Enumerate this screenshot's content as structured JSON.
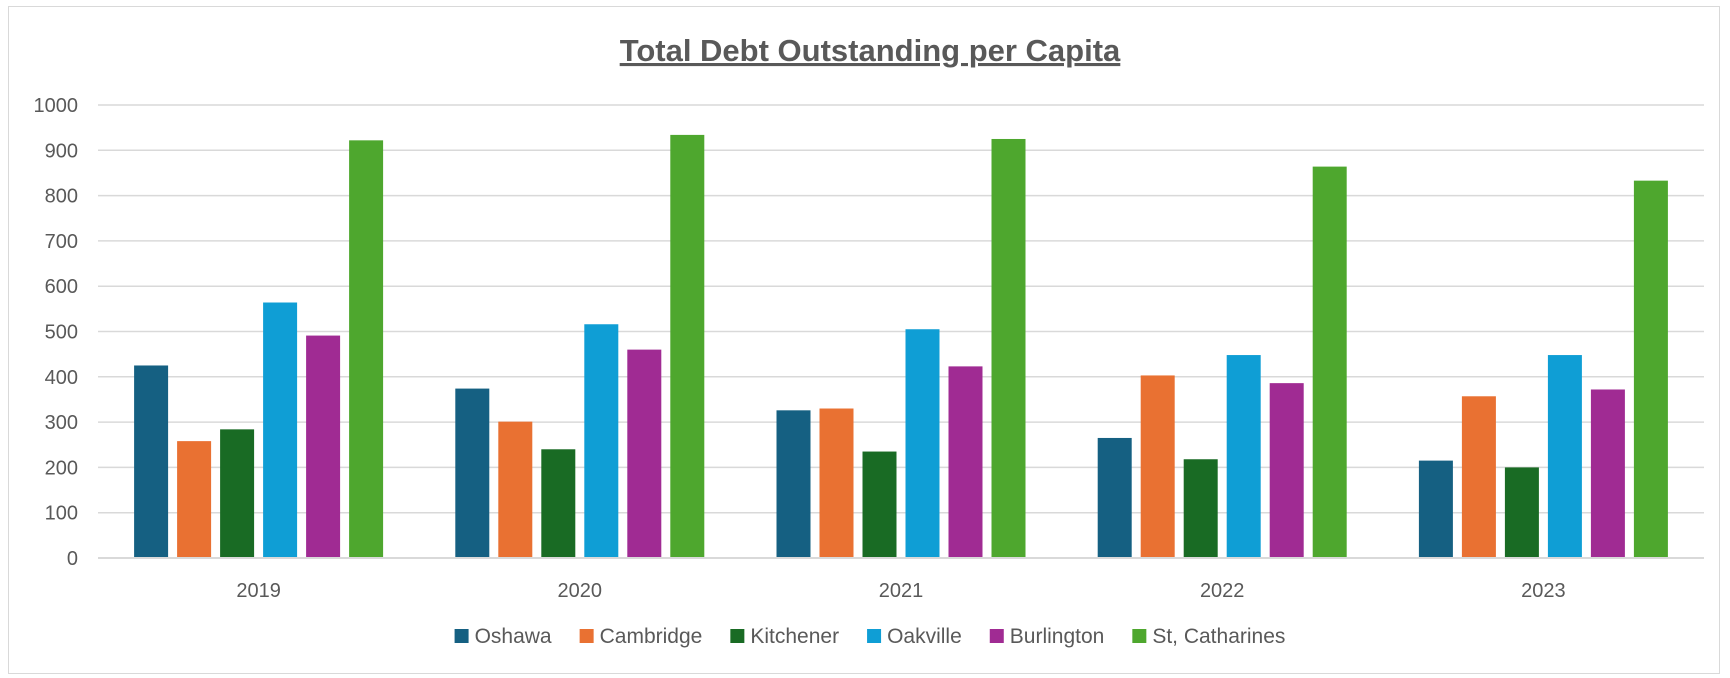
{
  "chart_data": {
    "type": "bar",
    "title": "Total Debt Outstanding per Capita",
    "xlabel": "",
    "ylabel": "",
    "categories": [
      "2019",
      "2020",
      "2021",
      "2022",
      "2023"
    ],
    "ylim": [
      0,
      1000
    ],
    "yticks": [
      0,
      100,
      200,
      300,
      400,
      500,
      600,
      700,
      800,
      900,
      1000
    ],
    "grid": true,
    "legend_position": "bottom",
    "series": [
      {
        "name": "Oshawa",
        "color": "#156082",
        "values": [
          425,
          374,
          326,
          265,
          215
        ]
      },
      {
        "name": "Cambridge",
        "color": "#E97132",
        "values": [
          258,
          301,
          330,
          403,
          357
        ]
      },
      {
        "name": "Kitchener",
        "color": "#196B24",
        "values": [
          284,
          240,
          235,
          218,
          200
        ]
      },
      {
        "name": "Oakville",
        "color": "#0F9ED5",
        "values": [
          564,
          516,
          505,
          448,
          448
        ]
      },
      {
        "name": "Burlington",
        "color": "#A02B93",
        "values": [
          491,
          460,
          423,
          386,
          372
        ]
      },
      {
        "name": "St, Catharines",
        "color": "#4EA72E",
        "values": [
          922,
          934,
          925,
          864,
          833
        ]
      }
    ]
  }
}
